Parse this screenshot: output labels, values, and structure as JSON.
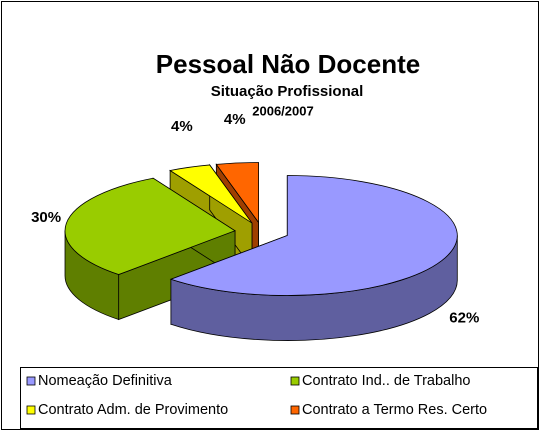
{
  "chart_data": {
    "type": "pie",
    "title": "Pessoal Não Docente",
    "subtitle": "Situação Profissional",
    "period": "2006/2007",
    "categories": [
      "Nomeação Definitiva",
      "Contrato Ind.. de Trabalho",
      "Contrato Adm. de Provimento",
      "Contrato a Termo Res. Certo"
    ],
    "values": [
      62,
      30,
      4,
      4
    ],
    "value_labels": [
      "62%",
      "30%",
      "4%",
      "4%"
    ],
    "colors": [
      "#9999ff",
      "#99cc00",
      "#ffff00",
      "#ff6600"
    ],
    "side_colors": [
      "#5f5f9f",
      "#5f7f00",
      "#9f9f00",
      "#9f3f00"
    ],
    "legend": "bottom"
  }
}
